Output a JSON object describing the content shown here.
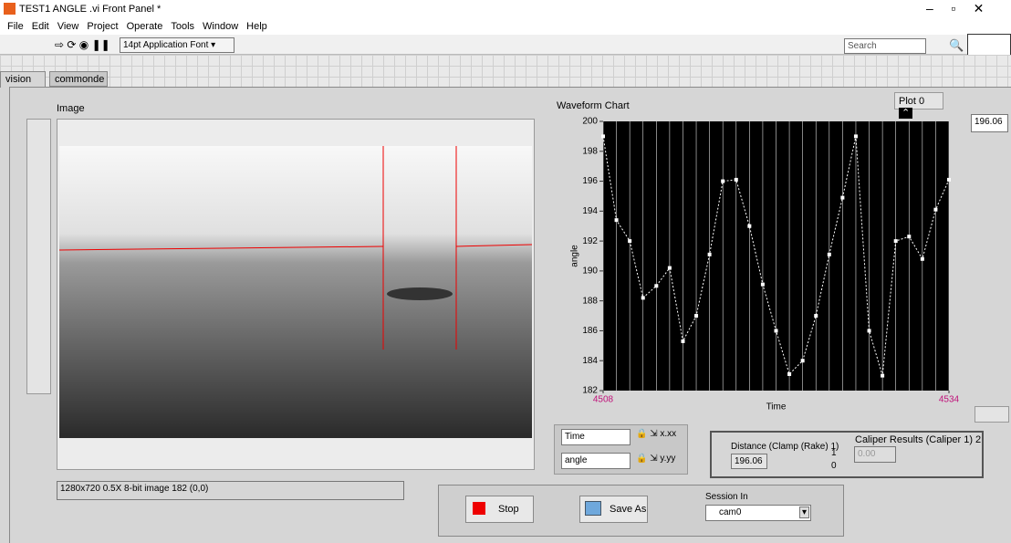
{
  "window": {
    "title": "TEST1 ANGLE .vi Front Panel *"
  },
  "menu": [
    "File",
    "Edit",
    "View",
    "Project",
    "Operate",
    "Tools",
    "Window",
    "Help"
  ],
  "toolbar": {
    "font": "14pt Application Font",
    "search": "Search"
  },
  "tabs": [
    "vision",
    "commonde"
  ],
  "image": {
    "label": "Image",
    "status": "1280x720 0.5X 8-bit image 182   (0,0)"
  },
  "chart_data": {
    "type": "line",
    "title": "Waveform Chart",
    "plot_legend": "Plot 0",
    "digital_display": "196.06",
    "x_label": "Time",
    "y_label": "angle",
    "color": "#ffffff",
    "background": "#000000",
    "grid": true,
    "x": [
      4508,
      4509,
      4510,
      4511,
      4512,
      4513,
      4514,
      4515,
      4516,
      4517,
      4518,
      4519,
      4520,
      4521,
      4522,
      4523,
      4524,
      4525,
      4526,
      4527,
      4528,
      4529,
      4530,
      4531,
      4532,
      4533,
      4534
    ],
    "values": [
      199,
      193.4,
      192,
      188.2,
      189,
      190.2,
      185.3,
      187,
      191.1,
      196,
      196.1,
      193,
      189.1,
      186,
      183.1,
      184,
      187,
      191.1,
      194.9,
      199,
      186,
      183,
      192,
      192.3,
      190.8,
      194.1,
      196.1
    ],
    "xlim": [
      4508,
      4534
    ],
    "xticks": [
      4508,
      4534
    ],
    "ylim": [
      182,
      200
    ],
    "yticks": [
      182,
      184,
      186,
      188,
      190,
      192,
      194,
      196,
      198,
      200
    ]
  },
  "scale_legend": {
    "x_name": "Time",
    "y_name": "angle"
  },
  "caliper": {
    "title": "Caliper Results (Caliper 1) 2",
    "label": "Distance (Clamp (Rake) 1)",
    "value": "196.06",
    "index_top": "1",
    "index_bottom": "0",
    "field": "0.00"
  },
  "buttons": {
    "stop": "Stop",
    "save": "Save As"
  },
  "session": {
    "label": "Session In",
    "value": "cam0"
  }
}
